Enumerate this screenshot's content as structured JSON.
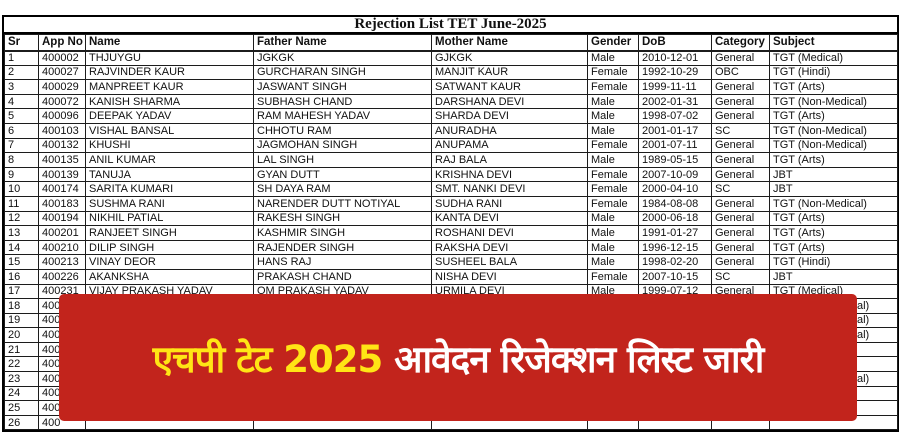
{
  "title": "Rejection List TET June-2025",
  "table": {
    "columns": [
      "Sr",
      "App No",
      "Name",
      "Father Name",
      "Mother Name",
      "Gender",
      "DoB",
      "Category",
      "Subject"
    ],
    "rows": [
      [
        "1",
        "400002",
        "THJUYGU",
        "JGKGK",
        "GJKGK",
        "Male",
        "2010-12-01",
        "General",
        "TGT (Medical)"
      ],
      [
        "2",
        "400027",
        "RAJVINDER KAUR",
        "GURCHARAN SINGH",
        "MANJIT KAUR",
        "Female",
        "1992-10-29",
        "OBC",
        "TGT (Hindi)"
      ],
      [
        "3",
        "400029",
        "MANPREET KAUR",
        "JASWANT SINGH",
        "SATWANT KAUR",
        "Female",
        "1999-11-11",
        "General",
        "TGT (Arts)"
      ],
      [
        "4",
        "400072",
        "KANISH SHARMA",
        "SUBHASH CHAND",
        "DARSHANA DEVI",
        "Male",
        "2002-01-31",
        "General",
        "TGT (Non-Medical)"
      ],
      [
        "5",
        "400096",
        "DEEPAK YADAV",
        "RAM MAHESH YADAV",
        "SHARDA DEVI",
        "Male",
        "1998-07-02",
        "General",
        "TGT (Arts)"
      ],
      [
        "6",
        "400103",
        "VISHAL BANSAL",
        "CHHOTU RAM",
        "ANURADHA",
        "Male",
        "2001-01-17",
        "SC",
        "TGT (Non-Medical)"
      ],
      [
        "7",
        "400132",
        "KHUSHI",
        "JAGMOHAN SINGH",
        "ANUPAMA",
        "Female",
        "2001-07-11",
        "General",
        "TGT (Non-Medical)"
      ],
      [
        "8",
        "400135",
        "ANIL KUMAR",
        "LAL SINGH",
        "RAJ BALA",
        "Male",
        "1989-05-15",
        "General",
        "TGT (Arts)"
      ],
      [
        "9",
        "400139",
        "TANUJA",
        "GYAN DUTT",
        "KRISHNA DEVI",
        "Female",
        "2007-10-09",
        "General",
        "JBT"
      ],
      [
        "10",
        "400174",
        "SARITA KUMARI",
        "SH DAYA RAM",
        "SMT. NANKI DEVI",
        "Female",
        "2000-04-10",
        "SC",
        "JBT"
      ],
      [
        "11",
        "400183",
        "SUSHMA RANI",
        "NARENDER DUTT NOTIYAL",
        "SUDHA RANI",
        "Female",
        "1984-08-08",
        "General",
        "TGT (Non-Medical)"
      ],
      [
        "12",
        "400194",
        "NIKHIL PATIAL",
        "RAKESH SINGH",
        "KANTA DEVI",
        "Male",
        "2000-06-18",
        "General",
        "TGT (Arts)"
      ],
      [
        "13",
        "400201",
        "RANJEET SINGH",
        "KASHMIR SINGH",
        "ROSHANI DEVI",
        "Male",
        "1991-01-27",
        "General",
        "TGT (Arts)"
      ],
      [
        "14",
        "400210",
        "DILIP SINGH",
        "RAJENDER SINGH",
        "RAKSHA DEVI",
        "Male",
        "1996-12-15",
        "General",
        "TGT (Arts)"
      ],
      [
        "15",
        "400213",
        "VINAY DEOR",
        "HANS RAJ",
        "SUSHEEL BALA",
        "Male",
        "1998-02-20",
        "General",
        "TGT (Hindi)"
      ],
      [
        "16",
        "400226",
        "AKANKSHA",
        "PRAKASH CHAND",
        "NISHA DEVI",
        "Female",
        "2007-10-15",
        "SC",
        "JBT"
      ],
      [
        "17",
        "400231",
        "VIJAY PRAKASH YADAV",
        "OM PRAKASH YADAV",
        "URMILA DEVI",
        "Male",
        "1999-07-12",
        "General",
        "TGT (Medical)"
      ]
    ],
    "covered_rows": [
      {
        "sr": "18",
        "app_no_fragment": "400",
        "subject_fragment": "al)"
      },
      {
        "sr": "19",
        "app_no_fragment": "400",
        "subject_fragment": "al)"
      },
      {
        "sr": "20",
        "app_no_fragment": "400",
        "subject_fragment": "al)"
      },
      {
        "sr": "21",
        "app_no_fragment": "400",
        "subject_fragment": ""
      },
      {
        "sr": "22",
        "app_no_fragment": "400",
        "subject_fragment": ""
      },
      {
        "sr": "23",
        "app_no_fragment": "400",
        "subject_fragment": "al)"
      },
      {
        "sr": "24",
        "app_no_fragment": "400",
        "subject_fragment": ""
      },
      {
        "sr": "25",
        "app_no_fragment": "400",
        "subject_fragment": ""
      },
      {
        "sr": "26",
        "app_no_fragment": "400",
        "subject_fragment": ""
      }
    ]
  },
  "banner": {
    "highlight_text": "एचपी टेट 2025",
    "main_text": "आवेदन रिजेक्शन लिस्ट जारी",
    "background_color": "#C2241C",
    "highlight_color": "#FFE515",
    "text_color": "#FFFFFF"
  }
}
